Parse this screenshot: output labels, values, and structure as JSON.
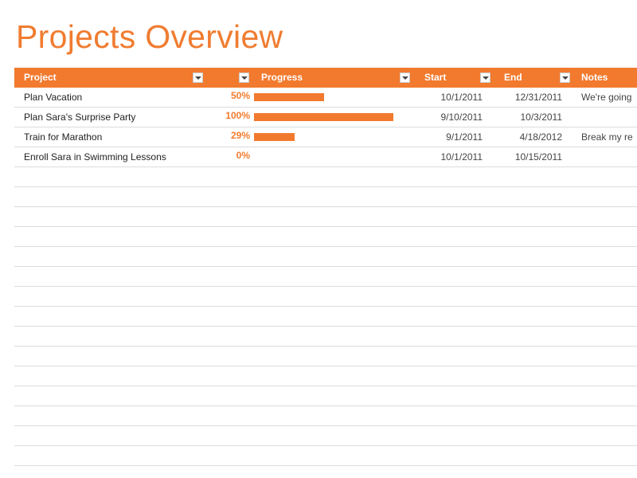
{
  "title": "Projects Overview",
  "columns": {
    "project": "Project",
    "progress": "Progress",
    "start": "Start",
    "end": "End",
    "notes": "Notes"
  },
  "rows": [
    {
      "project": "Plan Vacation",
      "progress_label": "50%",
      "progress": 0.5,
      "start": "10/1/2011",
      "end": "12/31/2011",
      "notes": "We're going"
    },
    {
      "project": "Plan Sara's Surprise Party",
      "progress_label": "100%",
      "progress": 1.0,
      "start": "9/10/2011",
      "end": "10/3/2011",
      "notes": ""
    },
    {
      "project": "Train for Marathon",
      "progress_label": "29%",
      "progress": 0.29,
      "start": "9/1/2011",
      "end": "4/18/2012",
      "notes": "Break my re"
    },
    {
      "project": "Enroll Sara in Swimming Lessons",
      "progress_label": "0%",
      "progress": 0.0,
      "start": "10/1/2011",
      "end": "10/15/2011",
      "notes": ""
    }
  ],
  "colors": {
    "accent": "#f27a2e",
    "title": "#f07c30",
    "grid_line": "#dcdcdc"
  },
  "icons": {
    "filter": "dropdown-arrow-icon"
  }
}
